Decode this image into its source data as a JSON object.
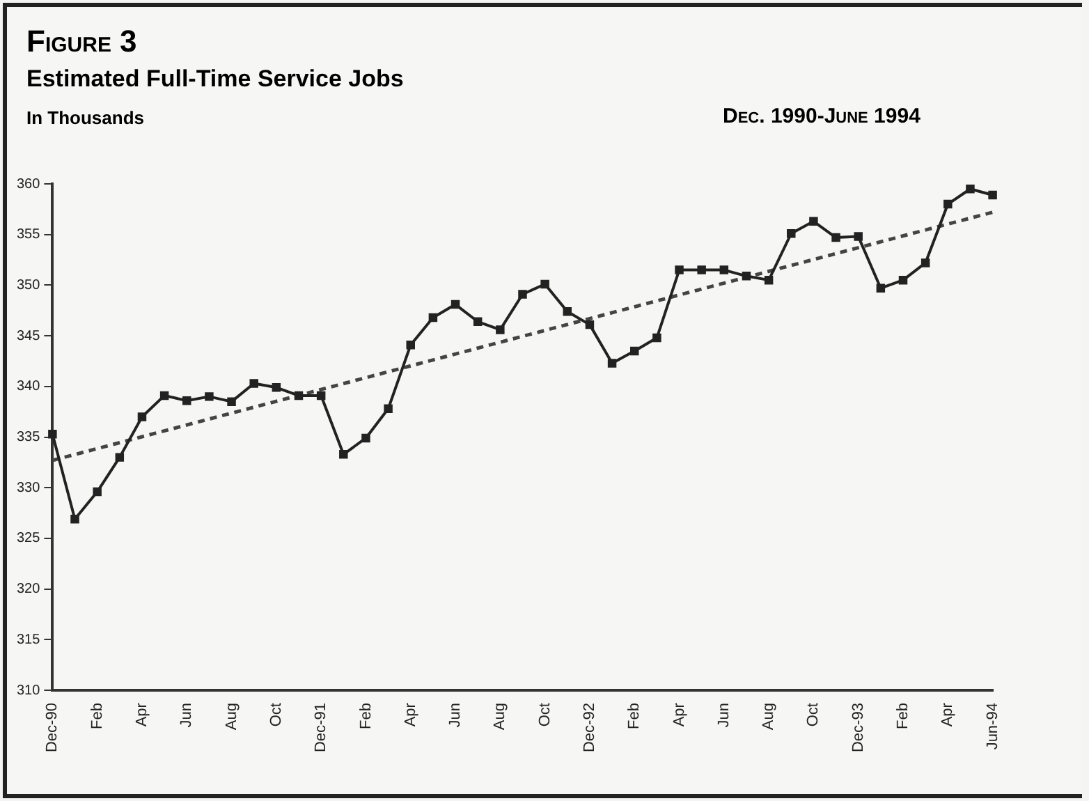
{
  "chart_data": {
    "type": "line",
    "title": "Figure 3",
    "subtitle": "Estimated Full-Time Service Jobs",
    "ylabel": "In Thousands",
    "annotations": [
      "Dec. 1990-June 1994"
    ],
    "categories": [
      "Dec-90",
      null,
      "Feb",
      null,
      "Apr",
      null,
      "Jun",
      null,
      "Aug",
      null,
      "Oct",
      null,
      "Dec-91",
      null,
      "Feb",
      null,
      "Apr",
      null,
      "Jun",
      null,
      "Aug",
      null,
      "Oct",
      null,
      "Dec-92",
      null,
      "Feb",
      null,
      "Apr",
      null,
      "Jun",
      null,
      "Aug",
      null,
      "Oct",
      null,
      "Dec-93",
      null,
      "Feb",
      null,
      "Apr",
      null,
      "Jun-94"
    ],
    "series": [
      {
        "color": "#222222",
        "marker": "square",
        "line_style": "solid",
        "values": [
          335.3,
          326.9,
          329.6,
          333,
          337,
          339.1,
          338.6,
          339,
          338.5,
          340.3,
          339.9,
          339.1,
          339.1,
          333.3,
          334.9,
          337.8,
          344.1,
          346.8,
          348.1,
          346.4,
          345.6,
          349.1,
          350.1,
          347.4,
          346.1,
          342.3,
          343.5,
          344.8,
          351.5,
          351.5,
          351.5,
          350.9,
          350.5,
          355.1,
          356.3,
          354.7,
          354.8,
          349.7,
          350.5,
          352.2,
          358,
          359.5,
          358.9
        ]
      },
      {
        "color": "#444444",
        "marker": "none",
        "line_style": "dashed",
        "values": [
          332.7,
          null,
          null,
          null,
          null,
          null,
          null,
          null,
          null,
          null,
          null,
          null,
          null,
          null,
          null,
          null,
          null,
          null,
          null,
          null,
          null,
          null,
          null,
          null,
          null,
          null,
          null,
          null,
          null,
          null,
          null,
          null,
          null,
          null,
          null,
          null,
          null,
          null,
          null,
          null,
          null,
          null,
          357.2
        ]
      }
    ],
    "ylim": [
      310,
      360
    ],
    "yticks": [
      310,
      315,
      320,
      325,
      330,
      335,
      340,
      345,
      350,
      355,
      360
    ],
    "grid": false,
    "legend": false
  }
}
